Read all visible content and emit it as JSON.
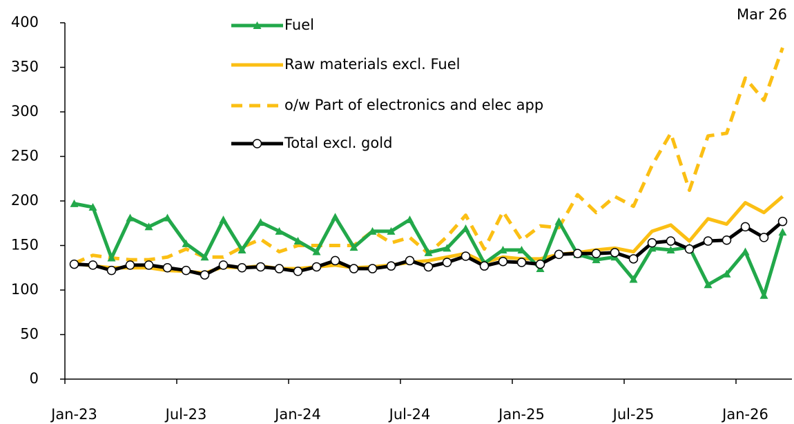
{
  "chart_data": {
    "type": "line",
    "annotation": "Mar 26",
    "categories": [
      "Jan-23",
      null,
      null,
      null,
      null,
      null,
      "Jul-23",
      null,
      null,
      null,
      null,
      null,
      "Jan-24",
      null,
      null,
      null,
      null,
      null,
      "Jul-24",
      null,
      null,
      null,
      null,
      null,
      "Jan-25",
      null,
      null,
      null,
      null,
      null,
      "Jul-25",
      null,
      null,
      null,
      null,
      null,
      "Jan-26",
      null,
      null
    ],
    "ylim": [
      0,
      400
    ],
    "yticks": [
      0,
      50,
      100,
      150,
      200,
      250,
      300,
      350,
      400
    ],
    "grid": false,
    "legend": "top-center",
    "series": [
      {
        "name": "Fuel",
        "color": "#22a84a",
        "marker": "triangle",
        "line_style": "solid",
        "values": [
          197,
          193,
          136,
          181,
          171,
          181,
          152,
          137,
          179,
          145,
          176,
          166,
          155,
          143,
          182,
          148,
          166,
          166,
          179,
          142,
          147,
          169,
          130,
          145,
          145,
          124,
          177,
          140,
          134,
          137,
          112,
          147,
          145,
          148,
          106,
          118,
          143,
          94,
          165
        ]
      },
      {
        "name": "Raw materials excl. Fuel",
        "color": "#fbbf14",
        "marker": "none",
        "line_style": "solid",
        "values": [
          130,
          127,
          125,
          125,
          125,
          122,
          121,
          119,
          126,
          125,
          127,
          124,
          124,
          126,
          128,
          125,
          126,
          128,
          131,
          133,
          137,
          141,
          131,
          137,
          135,
          135,
          140,
          142,
          145,
          147,
          143,
          166,
          173,
          155,
          180,
          174,
          198,
          187,
          205
        ]
      },
      {
        "name": "o/w Part of electronics and elec app",
        "color": "#fbbf14",
        "marker": "none",
        "line_style": "dashed",
        "values": [
          130,
          139,
          136,
          134,
          134,
          137,
          146,
          137,
          137,
          148,
          157,
          143,
          150,
          150,
          150,
          150,
          166,
          153,
          159,
          141,
          160,
          184,
          146,
          188,
          156,
          172,
          170,
          207,
          187,
          205,
          194,
          240,
          276,
          212,
          273,
          276,
          338,
          313,
          372
        ]
      },
      {
        "name": "Total excl. gold",
        "color": "#000000",
        "marker": "circle",
        "line_style": "solid",
        "values": [
          129,
          128,
          122,
          128,
          128,
          125,
          122,
          117,
          128,
          125,
          126,
          124,
          121,
          126,
          133,
          124,
          124,
          127,
          133,
          126,
          131,
          138,
          127,
          132,
          131,
          129,
          140,
          141,
          141,
          142,
          135,
          153,
          155,
          146,
          155,
          156,
          171,
          159,
          177
        ]
      }
    ]
  }
}
